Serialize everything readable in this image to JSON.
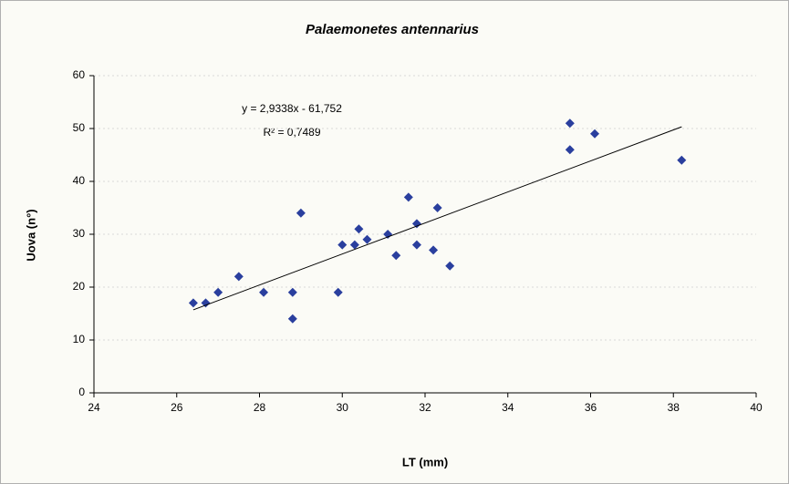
{
  "chart_data": {
    "type": "scatter",
    "title": "Palaemonetes antennarius",
    "xlabel": "LT (mm)",
    "ylabel": "Uova (n°)",
    "xlim": [
      24,
      40
    ],
    "xticks": [
      24,
      26,
      28,
      30,
      32,
      34,
      36,
      38,
      40
    ],
    "ylim": [
      0,
      60
    ],
    "yticks": [
      0,
      10,
      20,
      30,
      40,
      50,
      60
    ],
    "grid": true,
    "series": [
      {
        "color": "#2a3f9e",
        "x": [
          26.4,
          26.7,
          27.0,
          27.5,
          28.1,
          28.8,
          28.8,
          29.0,
          29.9,
          30.0,
          30.3,
          30.4,
          30.6,
          31.1,
          31.3,
          31.6,
          31.8,
          31.8,
          32.2,
          32.3,
          32.6,
          35.5,
          35.5,
          36.1,
          38.2
        ],
        "values": [
          17,
          17,
          19,
          22,
          19,
          19,
          14,
          34,
          19,
          28,
          28,
          31,
          29,
          30,
          26,
          37,
          32,
          28,
          27,
          35,
          24,
          51,
          46,
          49,
          44
        ]
      }
    ],
    "trendline": {
      "color": "#000000",
      "x": [
        26.4,
        38.2
      ],
      "values": [
        15.7,
        50.32
      ],
      "equation": "y = 2,9338x - 61,752",
      "r2": "R² = 0,7489"
    }
  }
}
